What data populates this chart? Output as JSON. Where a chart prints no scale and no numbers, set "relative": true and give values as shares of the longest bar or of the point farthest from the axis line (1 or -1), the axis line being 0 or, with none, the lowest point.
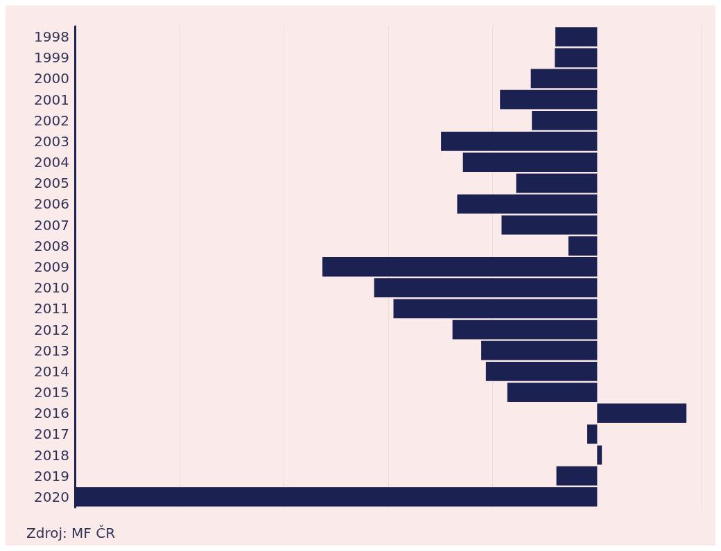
{
  "chart_data": {
    "type": "bar",
    "orientation": "horizontal",
    "relative": true,
    "grid": "x",
    "categories": [
      "1998",
      "1999",
      "2000",
      "2001",
      "2002",
      "2003",
      "2004",
      "2005",
      "2006",
      "2007",
      "2008",
      "2009",
      "2010",
      "2011",
      "2012",
      "2013",
      "2014",
      "2015",
      "2016",
      "2017",
      "2018",
      "2019",
      "2020"
    ],
    "values": [
      -0.08,
      -0.081,
      -0.127,
      -0.186,
      -0.125,
      -0.299,
      -0.257,
      -0.155,
      -0.268,
      -0.183,
      -0.055,
      -0.526,
      -0.427,
      -0.39,
      -0.277,
      -0.222,
      -0.213,
      -0.172,
      0.171,
      -0.019,
      0.009,
      -0.078,
      -1
    ],
    "color": "#1b2150",
    "annotations": [
      "Zdroj: MF ČR"
    ]
  }
}
